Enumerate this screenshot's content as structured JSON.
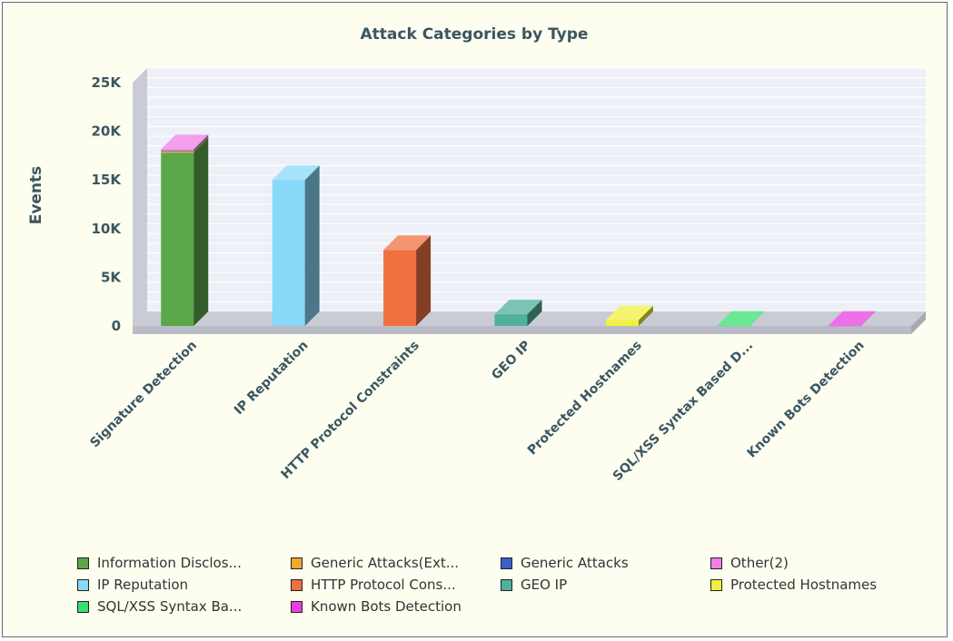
{
  "chart_data": {
    "type": "bar",
    "title": "Attack Categories by Type",
    "ylabel": "Events",
    "xlabel": "",
    "ylim": [
      0,
      25000
    ],
    "yticks": [
      {
        "value": 0,
        "label": "0"
      },
      {
        "value": 5000,
        "label": "5K"
      },
      {
        "value": 10000,
        "label": "10K"
      },
      {
        "value": 15000,
        "label": "15K"
      },
      {
        "value": 20000,
        "label": "20K"
      },
      {
        "value": 25000,
        "label": "25K"
      }
    ],
    "categories": [
      "Signature Detection",
      "IP Reputation",
      "HTTP Protocol Constraints",
      "GEO IP",
      "Protected Hostnames",
      "SQL/XSS Syntax Based D...",
      "Known Bots Detection"
    ],
    "series": [
      {
        "name": "Information Disclos...",
        "color": "#5aa84a",
        "values": [
          17800,
          0,
          0,
          0,
          0,
          0,
          0
        ]
      },
      {
        "name": "Generic Attacks(Ext...",
        "color": "#f0a830",
        "values": [
          150,
          0,
          0,
          0,
          0,
          0,
          0
        ]
      },
      {
        "name": "Generic Attacks",
        "color": "#3a5fc8",
        "values": [
          80,
          0,
          0,
          0,
          0,
          0,
          0
        ]
      },
      {
        "name": "Other(2)",
        "color": "#f07de8",
        "values": [
          120,
          0,
          0,
          0,
          0,
          0,
          0
        ]
      },
      {
        "name": "IP Reputation",
        "color": "#88d8f8",
        "values": [
          0,
          15000,
          0,
          0,
          0,
          0,
          0
        ]
      },
      {
        "name": "HTTP Protocol Cons...",
        "color": "#f07040",
        "values": [
          0,
          0,
          7800,
          0,
          0,
          0,
          0
        ]
      },
      {
        "name": "GEO IP",
        "color": "#50b098",
        "values": [
          0,
          0,
          0,
          1200,
          0,
          0,
          0
        ]
      },
      {
        "name": "Protected Hostnames",
        "color": "#f0f040",
        "values": [
          0,
          0,
          0,
          0,
          600,
          0,
          0
        ]
      },
      {
        "name": "SQL/XSS Syntax Ba...",
        "color": "#38e070",
        "values": [
          0,
          0,
          0,
          0,
          0,
          20,
          0
        ]
      },
      {
        "name": "Known Bots Detection",
        "color": "#e840e0",
        "values": [
          0,
          0,
          0,
          0,
          0,
          0,
          20
        ]
      }
    ],
    "grid": true,
    "legend_position": "bottom"
  }
}
